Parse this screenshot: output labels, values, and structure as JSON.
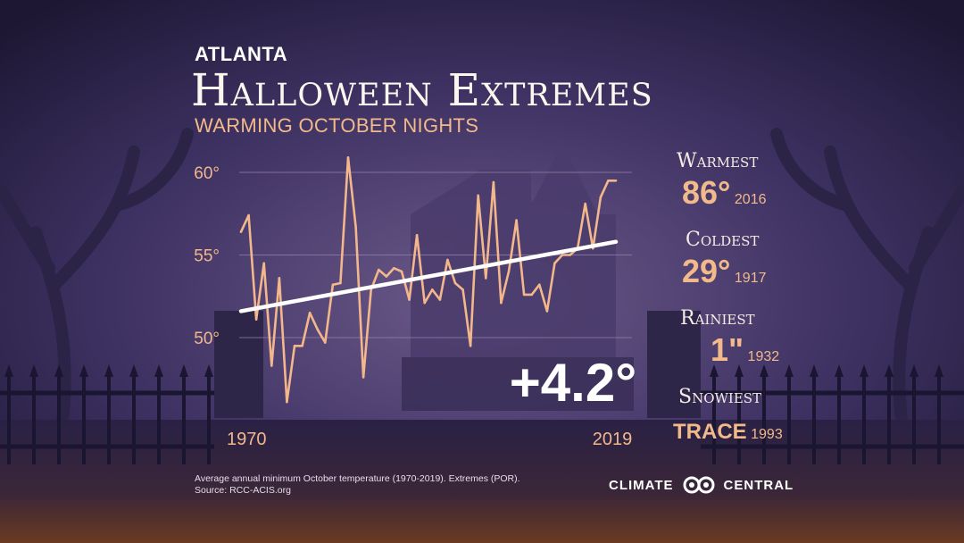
{
  "header": {
    "city": "ATLANTA",
    "title": "Halloween Extremes",
    "subtitle": "WARMING OCTOBER NIGHTS"
  },
  "chart_data": {
    "type": "line",
    "title": "",
    "xlabel": "",
    "ylabel": "",
    "x_tick_labels": [
      "1970",
      "2019"
    ],
    "y_ticks": [
      {
        "value": 50,
        "label": "50°"
      },
      {
        "value": 55,
        "label": "55°"
      },
      {
        "value": 60,
        "label": "60°"
      }
    ],
    "xlim": [
      1970,
      2019
    ],
    "ylim": [
      48.5,
      61.5
    ],
    "series": [
      {
        "x": [
          1970,
          1971,
          1972,
          1973,
          1974,
          1975,
          1976,
          1977,
          1978,
          1979,
          1980,
          1981,
          1982,
          1983,
          1984,
          1985,
          1986,
          1987,
          1988,
          1989,
          1990,
          1991,
          1992,
          1993,
          1994,
          1995,
          1996,
          1997,
          1998,
          1999,
          2000,
          2001,
          2002,
          2003,
          2004,
          2005,
          2006,
          2007,
          2008,
          2009,
          2010,
          2011,
          2012,
          2013,
          2014,
          2015,
          2016,
          2017,
          2018,
          2019
        ],
        "values": [
          56.4,
          57.4,
          51.1,
          54.5,
          48.3,
          53.6,
          46.1,
          49.5,
          49.5,
          51.5,
          50.5,
          49.7,
          53.2,
          53.3,
          60.9,
          56.7,
          47.6,
          52.9,
          54.1,
          53.7,
          54.2,
          54.0,
          52.3,
          56.2,
          52.1,
          52.9,
          52.3,
          54.7,
          53.3,
          52.9,
          49.5,
          58.6,
          53.6,
          59.4,
          52.1,
          54.0,
          57.1,
          52.6,
          52.6,
          53.2,
          51.6,
          54.5,
          55.0,
          55.0,
          55.4,
          58.1,
          55.4,
          58.5,
          59.5,
          59.5
        ]
      }
    ],
    "trend": {
      "start": 51.6,
      "end": 55.8
    },
    "grid": true,
    "legend": "none",
    "annotation": "+4.2°",
    "line_color": "#f3b78b",
    "trend_color": "#ffffff"
  },
  "stats": [
    {
      "label": "Warmest",
      "value": "86°",
      "year": "2016"
    },
    {
      "label": "Coldest",
      "value": "29°",
      "year": "1917"
    },
    {
      "label": "Rainiest",
      "value": "1\"",
      "year": "1932"
    },
    {
      "label": "Snowiest",
      "value": "TRACE",
      "year": "1993"
    }
  ],
  "footnote": {
    "line1": "Average annual minimum October temperature (1970-2019). Extremes (POR).",
    "line2": "Source: RCC-ACIS.org"
  },
  "brand": {
    "left": "CLIMATE",
    "right": "CENTRAL",
    "icon": "climate-central-logo-icon"
  },
  "colors": {
    "accent": "#f2b98a",
    "background": "#241d3f",
    "sky_glow": "#6e5a8c"
  }
}
